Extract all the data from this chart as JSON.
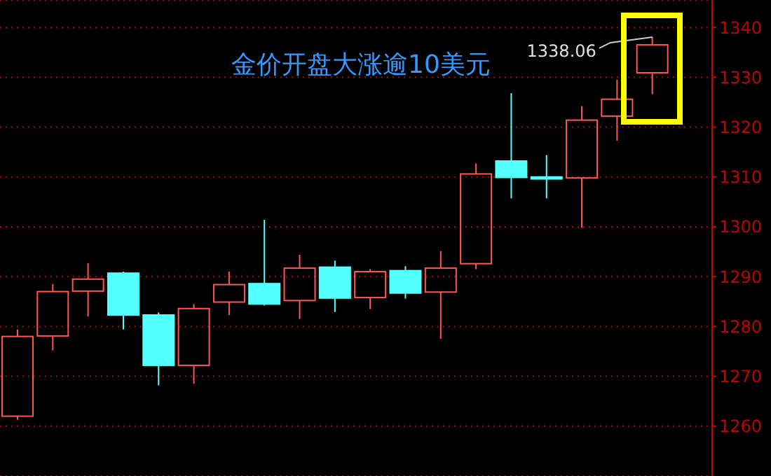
{
  "chart_data": {
    "type": "candlestick",
    "title": "金价开盘大涨逾10美元",
    "categories": [
      null,
      null,
      null,
      null,
      null,
      null,
      null,
      null,
      null,
      null,
      null,
      null,
      null,
      null,
      null,
      null,
      null,
      null,
      null
    ],
    "ohlc": [
      [
        1262,
        1279.4,
        1261.3,
        1278
      ],
      [
        1278.1,
        1288.5,
        1275.2,
        1287
      ],
      [
        1287.1,
        1292.7,
        1282,
        1289.5
      ],
      [
        1290.7,
        1291,
        1279.4,
        1282.3
      ],
      [
        1282.3,
        1282.8,
        1268.2,
        1272.2
      ],
      [
        1272.2,
        1284.5,
        1268.5,
        1283.6
      ],
      [
        1284.9,
        1291,
        1282.3,
        1288.4
      ],
      [
        1288.6,
        1301.4,
        1284.2,
        1284.5
      ],
      [
        1285.2,
        1294.4,
        1281.5,
        1291.7
      ],
      [
        1291.9,
        1293.2,
        1282.9,
        1285.7
      ],
      [
        1285.8,
        1291.5,
        1283.5,
        1291
      ],
      [
        1291.2,
        1292.1,
        1285.6,
        1286.7
      ],
      [
        1286.9,
        1295.1,
        1277.5,
        1291.7
      ],
      [
        1292.6,
        1312.7,
        1291.5,
        1310.6
      ],
      [
        1313.2,
        1326.8,
        1305.7,
        1309.9
      ],
      [
        1310,
        1314.4,
        1305.7,
        1309.6
      ],
      [
        1309.8,
        1324.2,
        1299.8,
        1321.4
      ],
      [
        1322.2,
        1329.5,
        1317.3,
        1325.6
      ],
      [
        1330.9,
        1338.06,
        1326.6,
        1336.5
      ]
    ],
    "colors": [
      "#ff5555",
      "#ff5555",
      "#ff5555",
      "#54ffff",
      "#54ffff",
      "#ff5555",
      "#ff5555",
      "#54ffff",
      "#ff5555",
      "#54ffff",
      "#ff5555",
      "#54ffff",
      "#ff5555",
      "#ff5555",
      "#54ffff",
      "#54ffff",
      "#ff5555",
      "#ff5555",
      "#ff5555"
    ],
    "ylim": [
      1250,
      1345.5
    ],
    "yticks": [
      1260,
      1270,
      1280,
      1290,
      1300,
      1310,
      1320,
      1330,
      1340
    ],
    "grid": "y",
    "tick_labels": "y",
    "annotations": [
      "1338.06"
    ]
  }
}
